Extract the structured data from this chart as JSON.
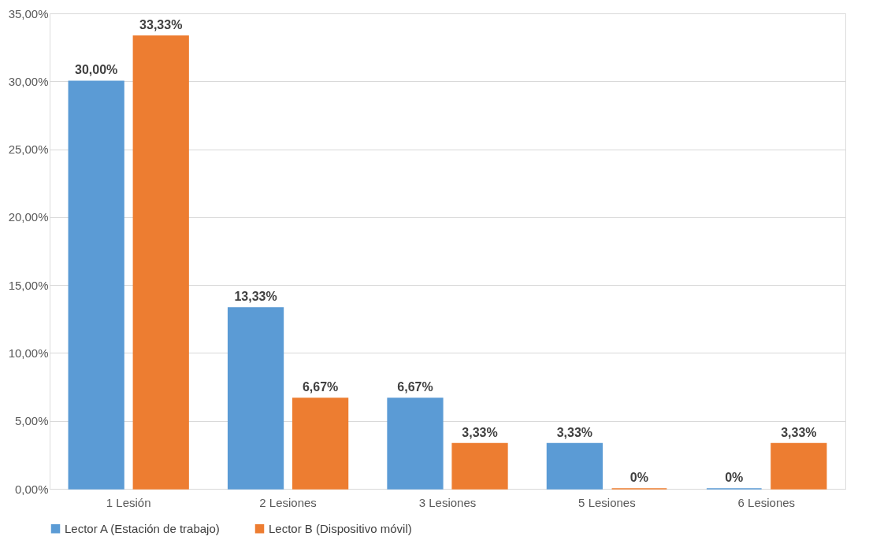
{
  "chart_data": {
    "type": "bar",
    "categories": [
      "1 Lesión",
      "2 Lesiones",
      "3 Lesiones",
      "5 Lesiones",
      "6 Lesiones"
    ],
    "series": [
      {
        "name": "Lector A (Estación de trabajo)",
        "color": "#5b9bd5",
        "values": [
          30.0,
          13.33,
          6.67,
          3.33,
          0
        ],
        "value_labels": [
          "30,00%",
          "13,33%",
          "6,67%",
          "3,33%",
          "0%"
        ]
      },
      {
        "name": "Lector B (Dispositivo móvil)",
        "color": "#ed7d31",
        "values": [
          33.33,
          6.67,
          3.33,
          0,
          3.33
        ],
        "value_labels": [
          "33,33%",
          "6,67%",
          "3,33%",
          "0%",
          "3,33%"
        ]
      }
    ],
    "ylim": [
      0,
      35
    ],
    "yticks": [
      {
        "value": 0,
        "label": "0,00%"
      },
      {
        "value": 5,
        "label": "5,00%"
      },
      {
        "value": 10,
        "label": "10,00%"
      },
      {
        "value": 15,
        "label": "15,00%"
      },
      {
        "value": 20,
        "label": "20,00%"
      },
      {
        "value": 25,
        "label": "25,00%"
      },
      {
        "value": 30,
        "label": "30,00%"
      },
      {
        "value": 35,
        "label": "35,00%"
      }
    ],
    "grid": "y",
    "legend": "bottom"
  }
}
